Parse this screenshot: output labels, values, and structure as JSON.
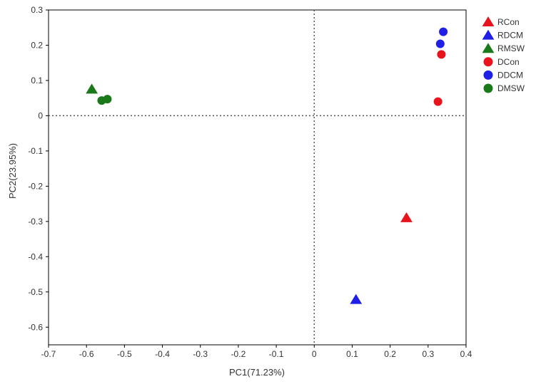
{
  "chart_data": {
    "type": "scatter",
    "xlabel": "PC1(71.23%)",
    "ylabel": "PC2(23.95%)",
    "xlim": [
      -0.7,
      0.4
    ],
    "ylim": [
      -0.65,
      0.3
    ],
    "xticks": [
      "-0.7",
      "-0.6",
      "-0.5",
      "-0.4",
      "-0.3",
      "-0.2",
      "-0.1",
      "0",
      "0.1",
      "0.2",
      "0.3",
      "0.4"
    ],
    "yticks": [
      "0.3",
      "0.2",
      "0.1",
      "0",
      "-0.1",
      "-0.2",
      "-0.3",
      "-0.4",
      "-0.5",
      "-0.6"
    ],
    "grid": false,
    "reference_lines": {
      "x": 0,
      "y": 0,
      "style": "dotted"
    },
    "legend_position": "right",
    "series": [
      {
        "name": "RCon",
        "marker": "triangle",
        "color": "#e8131c",
        "points": [
          [
            0.243,
            -0.29
          ]
        ]
      },
      {
        "name": "RDCM",
        "marker": "triangle",
        "color": "#1f1fe6",
        "points": [
          [
            0.11,
            -0.522
          ]
        ]
      },
      {
        "name": "RMSW",
        "marker": "triangle",
        "color": "#1a7a1a",
        "points": [
          [
            -0.586,
            0.075
          ]
        ]
      },
      {
        "name": "DCon",
        "marker": "circle",
        "color": "#e8131c",
        "points": [
          [
            0.335,
            0.174
          ],
          [
            0.326,
            0.04
          ]
        ]
      },
      {
        "name": "DDCM",
        "marker": "circle",
        "color": "#1f1fe6",
        "points": [
          [
            0.34,
            0.238
          ],
          [
            0.332,
            0.204
          ]
        ]
      },
      {
        "name": "DMSW",
        "marker": "circle",
        "color": "#1a7a1a",
        "points": [
          [
            -0.56,
            0.043
          ],
          [
            -0.545,
            0.047
          ]
        ]
      }
    ]
  }
}
